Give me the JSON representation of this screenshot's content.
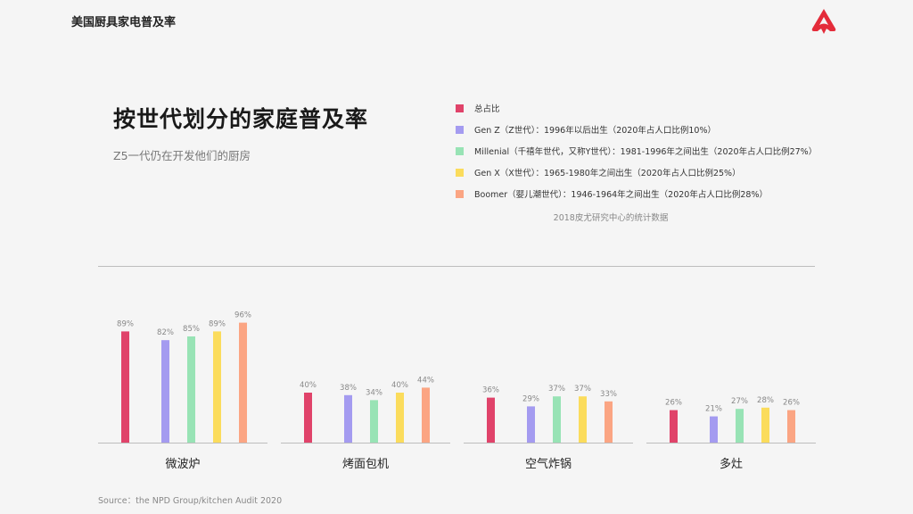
{
  "header": {
    "title": "美国厨具家电普及率"
  },
  "main": {
    "title": "按世代划分的家庭普及率",
    "subtitle": "Z5一代仍在开发他们的厨房"
  },
  "legend": [
    {
      "label": "总占比",
      "color": "#e0436a"
    },
    {
      "label": "Gen Z（Z世代）：1996年以后出生（2020年占人口比例10%）",
      "color": "#a49bf0"
    },
    {
      "label": "Millenial（千禧年世代，又称Y世代）：1981-1996年之间出生（2020年占人口比例27%）",
      "color": "#98e3b5"
    },
    {
      "label": "Gen X（X世代）：1965-1980年之间出生（2020年占人口比例25%）",
      "color": "#fbdc5c"
    },
    {
      "label": "Boomer（婴儿潮世代）：1946-1964年之间出生（2020年占人口比例28%）",
      "color": "#fba583"
    }
  ],
  "stat_note": "2018皮尤研究中心的统计数据",
  "source": "Source：the NPD Group/kitchen Audit 2020",
  "logo_icon": "brand-logo-icon",
  "chart_data": {
    "type": "bar",
    "categories": [
      "微波炉",
      "烤面包机",
      "空气炸锅",
      "多灶"
    ],
    "series": [
      {
        "name": "总占比",
        "color": "#e0436a",
        "values": [
          89,
          40,
          36,
          26
        ]
      },
      {
        "name": "Gen Z",
        "color": "#a49bf0",
        "values": [
          82,
          38,
          29,
          21
        ]
      },
      {
        "name": "Millenial",
        "color": "#98e3b5",
        "values": [
          85,
          34,
          37,
          27
        ]
      },
      {
        "name": "Gen X",
        "color": "#fbdc5c",
        "values": [
          89,
          40,
          37,
          28
        ]
      },
      {
        "name": "Boomer",
        "color": "#fba583",
        "values": [
          96,
          44,
          33,
          26
        ]
      }
    ],
    "value_suffix": "%",
    "ylim": [
      0,
      100
    ],
    "grid": false
  }
}
